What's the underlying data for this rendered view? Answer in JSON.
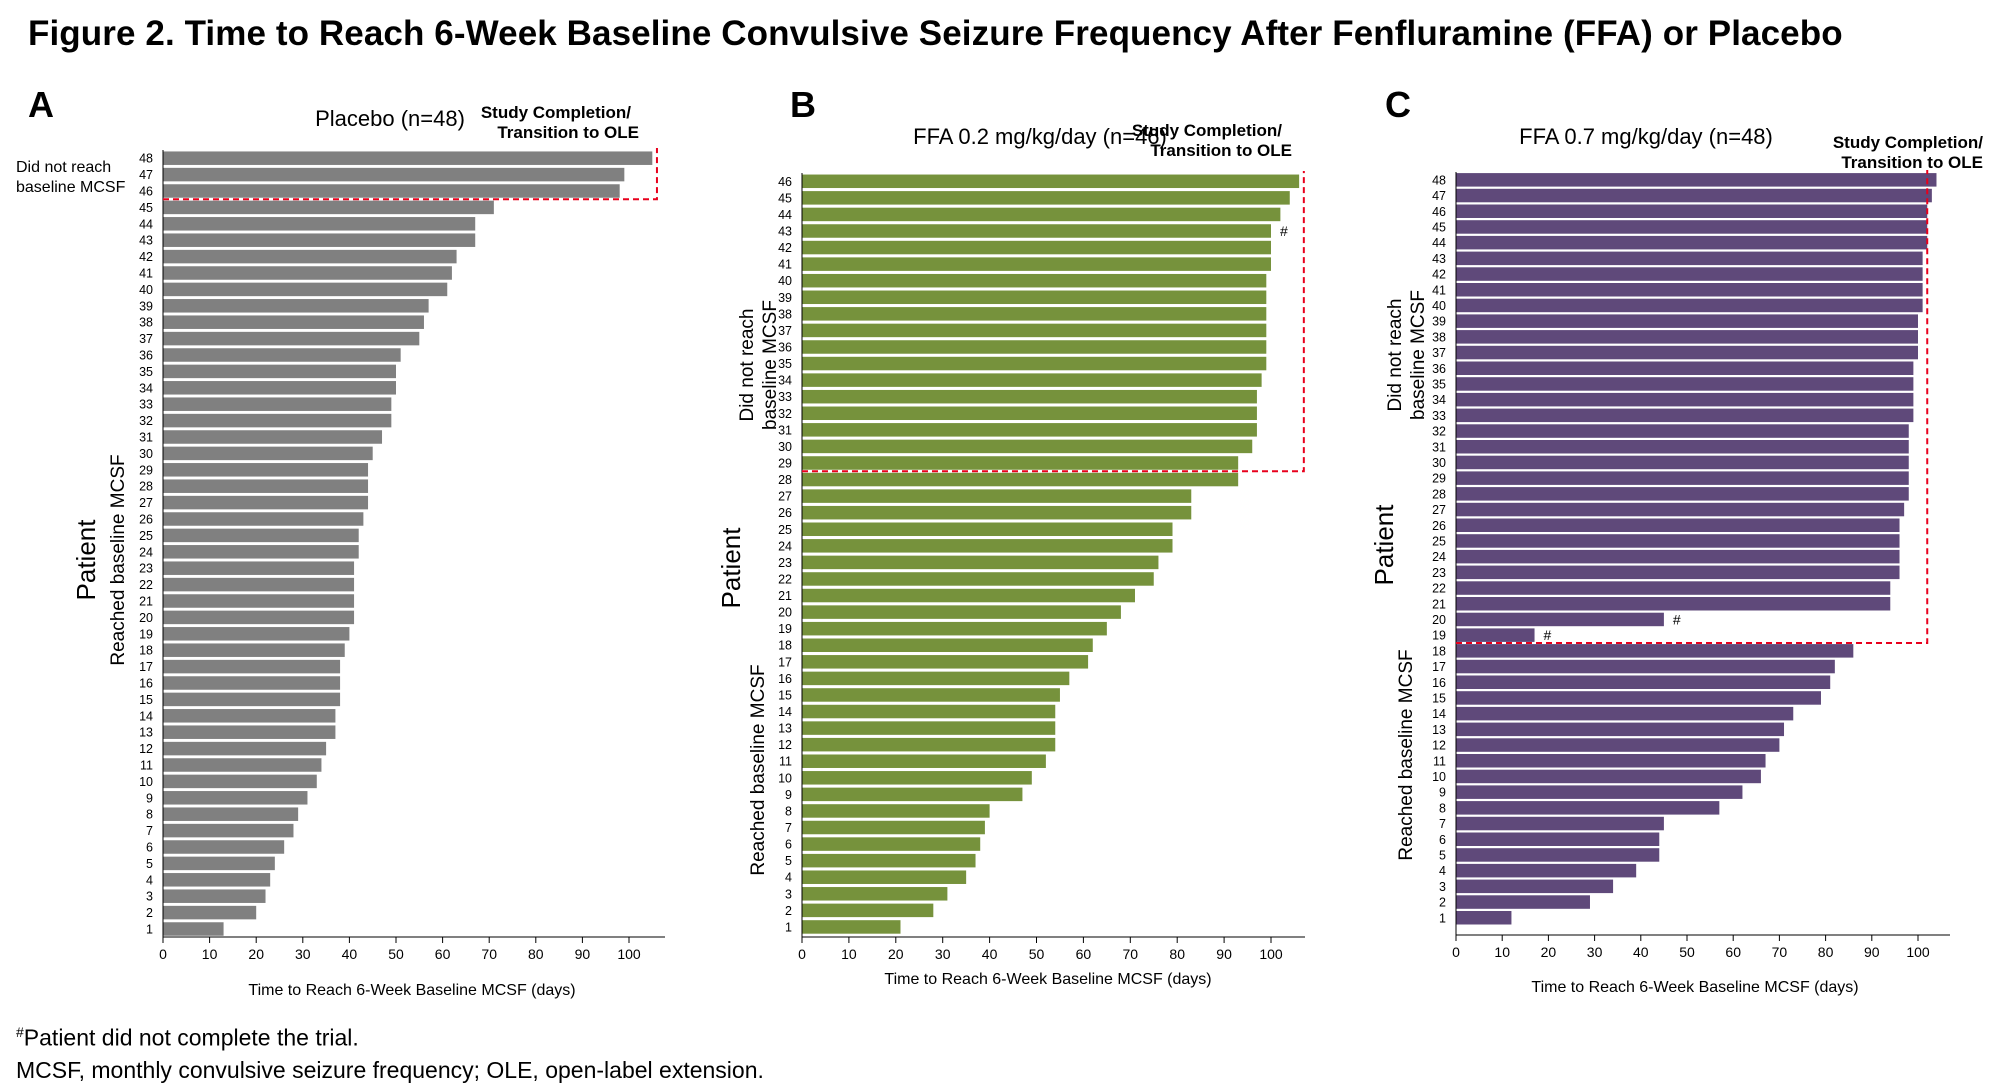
{
  "figure_title": "Figure 2. Time to Reach 6-Week Baseline Convulsive Seizure Frequency After Fenfluramine (FFA) or Placebo",
  "footnotes": {
    "hash_marker": "#",
    "hash_note": "Patient did not complete the trial.",
    "abbreviations": "MCSF, monthly convulsive seizure frequency; OLE, open-label extension."
  },
  "colors": {
    "placebo": "#808080",
    "ffa_low": "#76923c",
    "ffa_high": "#5f497a",
    "cutoff_box": "#e8001c"
  },
  "chart_data": [
    {
      "type": "bar",
      "panel_letter": "A",
      "title": "Placebo (n=48)",
      "ylabel": "Patient",
      "group_labels": {
        "not_reached": "Did not reach baseline MCSF",
        "reached": "Reached baseline MCSF"
      },
      "annotation": "Study Completion/ Transition to OLE",
      "xlabel": "Time to Reach 6-Week Baseline MCSF (days)",
      "xlim": [
        0,
        108
      ],
      "xticks": [
        0,
        10,
        20,
        30,
        40,
        50,
        60,
        70,
        80,
        90,
        100
      ],
      "categories": [
        "1",
        "2",
        "3",
        "4",
        "5",
        "6",
        "7",
        "8",
        "9",
        "10",
        "11",
        "12",
        "13",
        "14",
        "15",
        "16",
        "17",
        "18",
        "19",
        "20",
        "21",
        "22",
        "23",
        "24",
        "25",
        "26",
        "27",
        "28",
        "29",
        "30",
        "31",
        "32",
        "33",
        "34",
        "35",
        "36",
        "37",
        "38",
        "39",
        "40",
        "41",
        "42",
        "43",
        "44",
        "45",
        "46",
        "47",
        "48"
      ],
      "values": [
        13,
        20,
        22,
        23,
        24,
        26,
        28,
        29,
        31,
        33,
        34,
        35,
        37,
        37,
        38,
        38,
        38,
        39,
        40,
        41,
        41,
        41,
        41,
        42,
        42,
        43,
        44,
        44,
        44,
        45,
        47,
        49,
        49,
        50,
        50,
        51,
        55,
        56,
        57,
        61,
        62,
        63,
        67,
        67,
        71,
        98,
        99,
        105
      ],
      "not_reached_from": 46,
      "cutoff_day": 106,
      "did_not_complete": []
    },
    {
      "type": "bar",
      "panel_letter": "B",
      "title": "FFA 0.2 mg/kg/day (n=46)",
      "ylabel": "Patient",
      "group_labels": {
        "not_reached": "Did not reach baseline MCSF",
        "reached": "Reached baseline MCSF"
      },
      "annotation": "Study Completion/ Transition to OLE",
      "xlabel": "Time to Reach 6-Week Baseline MCSF (days)",
      "xlim": [
        0,
        107
      ],
      "xticks": [
        0,
        10,
        20,
        30,
        40,
        50,
        60,
        70,
        80,
        90,
        100
      ],
      "categories": [
        "1",
        "2",
        "3",
        "4",
        "5",
        "6",
        "7",
        "8",
        "9",
        "10",
        "11",
        "12",
        "13",
        "14",
        "15",
        "16",
        "17",
        "18",
        "19",
        "20",
        "21",
        "22",
        "23",
        "24",
        "25",
        "26",
        "27",
        "28",
        "29",
        "30",
        "31",
        "32",
        "33",
        "34",
        "35",
        "36",
        "37",
        "38",
        "39",
        "40",
        "41",
        "42",
        "43",
        "44",
        "45",
        "46"
      ],
      "values": [
        21,
        28,
        31,
        35,
        37,
        38,
        39,
        40,
        47,
        49,
        52,
        54,
        54,
        54,
        55,
        57,
        61,
        62,
        65,
        68,
        71,
        75,
        76,
        79,
        79,
        83,
        83,
        93,
        93,
        96,
        97,
        97,
        97,
        98,
        99,
        99,
        99,
        99,
        99,
        99,
        100,
        100,
        100,
        102,
        104,
        106
      ],
      "not_reached_from": 29,
      "cutoff_day": 107,
      "did_not_complete": [
        43
      ]
    },
    {
      "type": "bar",
      "panel_letter": "C",
      "title": "FFA 0.7 mg/kg/day (n=48)",
      "ylabel": "Patient",
      "group_labels": {
        "not_reached": "Did not reach baseline MCSF",
        "reached": "Reached baseline MCSF"
      },
      "annotation": "Study Completion/ Transition to OLE",
      "xlabel": "Time to Reach 6-Week Baseline MCSF (days)",
      "xlim": [
        0,
        107
      ],
      "xticks": [
        0,
        10,
        20,
        30,
        40,
        50,
        60,
        70,
        80,
        90,
        100
      ],
      "categories": [
        "1",
        "2",
        "3",
        "4",
        "5",
        "6",
        "7",
        "8",
        "9",
        "10",
        "11",
        "12",
        "13",
        "14",
        "15",
        "16",
        "17",
        "18",
        "19",
        "20",
        "21",
        "22",
        "23",
        "24",
        "25",
        "26",
        "27",
        "28",
        "29",
        "30",
        "31",
        "32",
        "33",
        "34",
        "35",
        "36",
        "37",
        "38",
        "39",
        "40",
        "41",
        "42",
        "43",
        "44",
        "45",
        "46",
        "47",
        "48"
      ],
      "values": [
        12,
        29,
        34,
        39,
        44,
        44,
        45,
        57,
        62,
        66,
        67,
        70,
        71,
        73,
        79,
        81,
        82,
        86,
        17,
        45,
        94,
        94,
        96,
        96,
        96,
        96,
        97,
        98,
        98,
        98,
        98,
        98,
        99,
        99,
        99,
        99,
        100,
        100,
        100,
        101,
        101,
        101,
        101,
        102,
        102,
        102,
        103,
        104
      ],
      "not_reached_from": 19,
      "cutoff_day": 102,
      "did_not_complete": [
        19,
        20
      ]
    }
  ]
}
